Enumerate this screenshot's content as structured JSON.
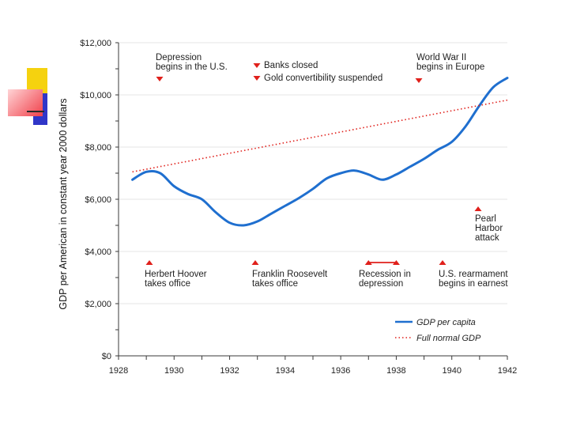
{
  "colors": {
    "line": "#1f6fcf",
    "trend": "#e0201b",
    "marker": "#e0201b",
    "axis": "#3a3a3a",
    "grid": "#e6e6e6",
    "deco_yellow": "#f5d20f",
    "deco_blue": "#3036c8",
    "deco_red": "#f0404a"
  },
  "chart_data": {
    "type": "line",
    "ylabel": "GDP per American in constant year 2000 dollars",
    "xlabel": "",
    "xlim": [
      1928,
      1942
    ],
    "ylim": [
      0,
      12000
    ],
    "y_ticks": [
      0,
      2000,
      4000,
      6000,
      8000,
      10000,
      12000
    ],
    "y_tick_labels": [
      "$0",
      "$2,000",
      "$4,000",
      "$6,000",
      "$8,000",
      "$10,000",
      "$12,000"
    ],
    "x_ticks": [
      1928,
      1930,
      1932,
      1934,
      1936,
      1938,
      1940,
      1942
    ],
    "x_tick_labels": [
      "1928",
      "1930",
      "1932",
      "1934",
      "1936",
      "1938",
      "1940",
      "1942"
    ],
    "series": [
      {
        "name": "GDP per capita",
        "style": "solid",
        "x": [
          1928.5,
          1929,
          1929.5,
          1930,
          1930.5,
          1931,
          1931.5,
          1932,
          1932.5,
          1933,
          1933.5,
          1934,
          1934.5,
          1935,
          1935.5,
          1936,
          1936.5,
          1937,
          1937.5,
          1938,
          1938.5,
          1939,
          1939.5,
          1940,
          1940.5,
          1941,
          1941.5,
          1942
        ],
        "values": [
          6750,
          7050,
          7000,
          6500,
          6200,
          6000,
          5500,
          5100,
          5000,
          5150,
          5450,
          5750,
          6050,
          6400,
          6800,
          7000,
          7100,
          6950,
          6750,
          6950,
          7250,
          7550,
          7900,
          8200,
          8800,
          9600,
          10300,
          10650
        ]
      },
      {
        "name": "Full normal GDP",
        "style": "dotted",
        "x": [
          1928.5,
          1942
        ],
        "values": [
          7050,
          9800
        ]
      }
    ],
    "legend": [
      "GDP per capita",
      "Full normal GDP"
    ],
    "legend_position": "bottom-right",
    "annotations": [
      {
        "id": "depression",
        "lines": [
          "Depression",
          "begins in the U.S."
        ],
        "x": 1929,
        "marker": "down"
      },
      {
        "id": "banks",
        "lines": [
          "Banks closed"
        ],
        "x": 1933,
        "marker": "down"
      },
      {
        "id": "gold",
        "lines": [
          "Gold convertibility suspended"
        ],
        "x": 1933,
        "marker": "down"
      },
      {
        "id": "ww2",
        "lines": [
          "World War II",
          "begins in Europe"
        ],
        "x": 1939,
        "marker": "down"
      },
      {
        "id": "pearl",
        "lines": [
          "Pearl",
          "Harbor",
          "attack"
        ],
        "x": 1941,
        "marker": "up"
      },
      {
        "id": "hoover",
        "lines": [
          "Herbert Hoover",
          "takes office"
        ],
        "x": 1929,
        "marker": "up"
      },
      {
        "id": "fdr",
        "lines": [
          "Franklin Roosevelt",
          "takes office"
        ],
        "x": 1933,
        "marker": "up"
      },
      {
        "id": "recession",
        "lines": [
          "Recession in",
          "depression"
        ],
        "x": 1937,
        "x_end": 1938,
        "marker": "up-range"
      },
      {
        "id": "rearm",
        "lines": [
          "U.S. rearmament",
          "begins in earnest"
        ],
        "x": 1940,
        "marker": "up"
      }
    ]
  }
}
